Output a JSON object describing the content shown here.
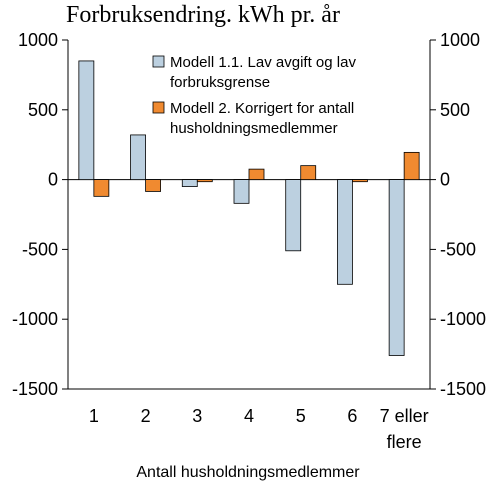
{
  "chart_data": {
    "type": "bar",
    "title": "Forbruksendring. kWh pr. år",
    "xlabel": "Antall husholdningsmedlemmer",
    "ylabel": "",
    "ylim": [
      -1500,
      1000
    ],
    "yticks": [
      1000,
      500,
      0,
      -500,
      -1000,
      -1500
    ],
    "categories": [
      [
        "1"
      ],
      [
        "2"
      ],
      [
        "3"
      ],
      [
        "4"
      ],
      [
        "5"
      ],
      [
        "6"
      ],
      [
        "7 eller",
        "flere"
      ]
    ],
    "series": [
      {
        "name": "Modell 1.1. Lav avgift og lav forbruksgrense",
        "legend_lines": [
          "Modell 1.1. Lav avgift og lav",
          "forbruksgrense"
        ],
        "color": "#bcd0e0",
        "values": [
          850,
          320,
          -50,
          -170,
          -510,
          -750,
          -1260
        ]
      },
      {
        "name": "Modell 2. Korrigert for antall husholdningsmedlemmer",
        "legend_lines": [
          "Modell 2. Korrigert for antall",
          "husholdningsmedlemmer"
        ],
        "color": "#f08a30",
        "values": [
          -120,
          -85,
          -15,
          75,
          100,
          -15,
          195
        ]
      }
    ],
    "grid": false,
    "legend_position": "top-center",
    "secondary_y_axis": true
  }
}
